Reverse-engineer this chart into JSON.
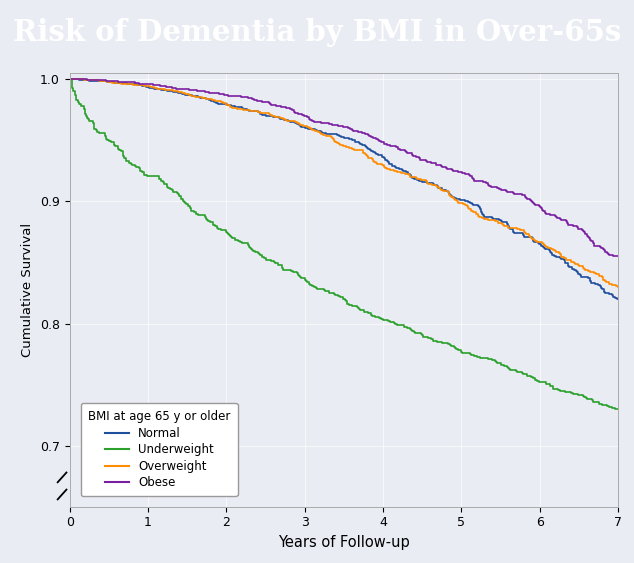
{
  "title": "Risk of Dementia by BMI in Over-65s",
  "xlabel": "Years of Follow-up",
  "ylabel": "Cumulative Survival",
  "xlim": [
    0,
    7
  ],
  "ylim": [
    0.65,
    1.005
  ],
  "yticks": [
    0.7,
    0.8,
    0.9,
    1.0
  ],
  "xticks": [
    0,
    1,
    2,
    3,
    4,
    5,
    6,
    7
  ],
  "legend_title": "BMI at age 65 y or older",
  "legend_labels": [
    "Normal",
    "Underweight",
    "Overweight",
    "Obese"
  ],
  "colors": {
    "Normal": "#1f4e9c",
    "Underweight": "#2ca02c",
    "Overweight": "#ff8c00",
    "Obese": "#7b1fa2"
  },
  "background_color": "#eaecf4",
  "title_bg": "#000000",
  "title_color": "#ffffff"
}
